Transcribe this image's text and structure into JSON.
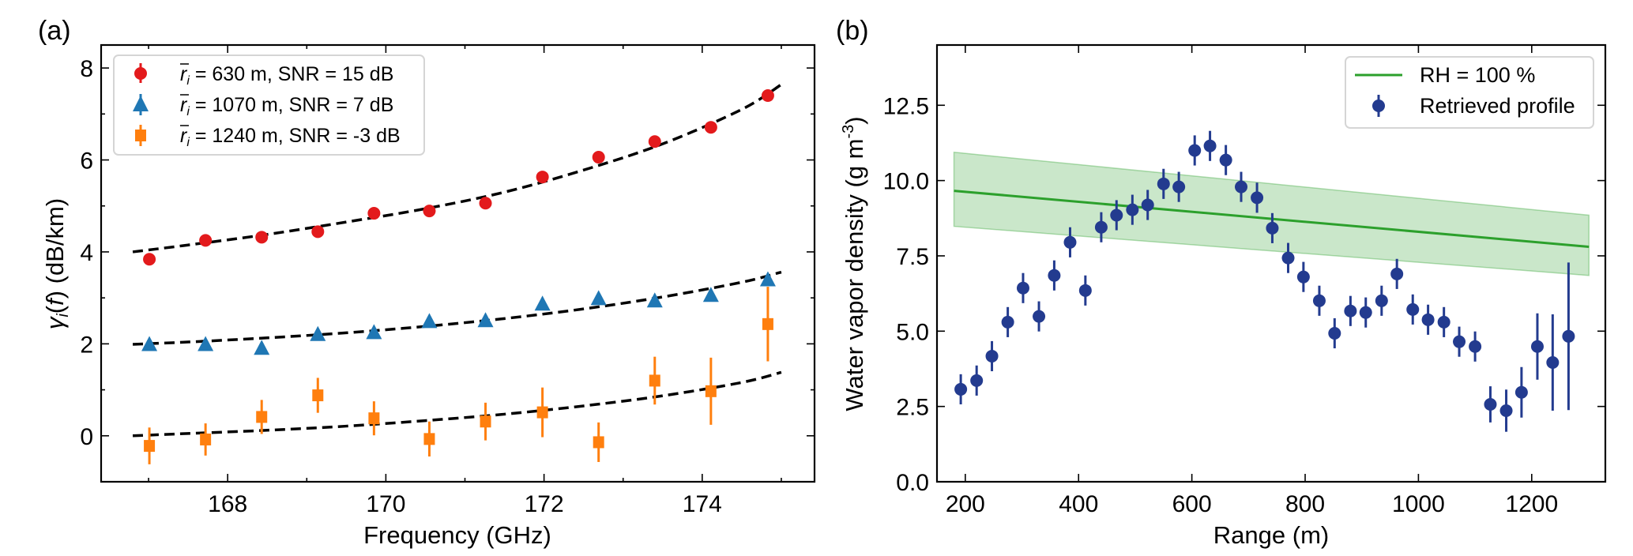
{
  "figure": {
    "panel_a_label": "(a)",
    "panel_b_label": "(b)"
  },
  "chart_data": [
    {
      "id": "a",
      "type": "scatter",
      "title": "",
      "panel_label": "(a)",
      "xlabel": "Frequency (GHz)",
      "ylabel_parts": [
        "γ",
        "i",
        "(",
        "f",
        ") (dB/km)"
      ],
      "ylabel": "γi(f) (dB/km)",
      "xlim": [
        166.4,
        175.42
      ],
      "ylim": [
        -1.0,
        8.5
      ],
      "xticks": [
        168,
        170,
        172,
        174
      ],
      "xtick_labels": [
        "168",
        "170",
        "172",
        "174"
      ],
      "xminor": [
        167,
        169,
        171,
        173,
        175
      ],
      "yticks": [
        0,
        2,
        4,
        6,
        8
      ],
      "ytick_labels": [
        "0",
        "2",
        "4",
        "6",
        "8"
      ],
      "yminor": [
        1,
        3,
        5,
        7
      ],
      "grid": false,
      "legend_position": "top-left",
      "x": [
        167.01,
        167.72,
        168.43,
        169.14,
        169.85,
        170.55,
        171.26,
        171.98,
        172.69,
        173.4,
        174.11,
        174.83
      ],
      "series": [
        {
          "name": "r̄i = 630 m, SNR = 15 dB",
          "legend_parts": [
            "r",
            "i",
            " = 630 m, SNR = 15 dB"
          ],
          "marker": "circle",
          "color": "#e31a1c",
          "values": [
            3.84,
            4.25,
            4.32,
            4.44,
            4.84,
            4.89,
            5.06,
            5.63,
            6.06,
            6.4,
            6.71,
            7.4
          ],
          "errors": [
            0.1,
            0.1,
            0.1,
            0.1,
            0.1,
            0.1,
            0.1,
            0.1,
            0.1,
            0.1,
            0.1,
            0.1
          ],
          "fit": {
            "x": [
              166.8,
              167.5,
              168.5,
              169.5,
              170.5,
              171.5,
              172.5,
              173.5,
              174.5,
              175.0
            ],
            "y": [
              4.0,
              4.15,
              4.38,
              4.65,
              4.94,
              5.3,
              5.78,
              6.35,
              7.1,
              7.64
            ]
          }
        },
        {
          "name": "r̄i = 1070 m, SNR = 7 dB",
          "legend_parts": [
            "r",
            "i",
            " = 1070 m, SNR = 7 dB"
          ],
          "marker": "triangle",
          "color": "#1f77b4",
          "values": [
            1.98,
            1.98,
            1.9,
            2.2,
            2.24,
            2.48,
            2.5,
            2.86,
            2.98,
            2.93,
            3.05,
            3.39
          ],
          "errors": [
            0.08,
            0.08,
            0.08,
            0.08,
            0.08,
            0.08,
            0.08,
            0.08,
            0.08,
            0.08,
            0.08,
            0.08
          ],
          "fit": {
            "x": [
              166.8,
              167.5,
              168.5,
              169.5,
              170.5,
              171.5,
              172.5,
              173.5,
              174.5,
              175.0
            ],
            "y": [
              1.99,
              2.04,
              2.13,
              2.24,
              2.38,
              2.55,
              2.76,
              3.02,
              3.34,
              3.56
            ]
          }
        },
        {
          "name": "r̄i = 1240 m, SNR = -3 dB",
          "legend_parts": [
            "r",
            "i",
            " = 1240 m, SNR = -3 dB"
          ],
          "marker": "square",
          "color": "#ff7f0e",
          "values": [
            -0.22,
            -0.08,
            0.41,
            0.88,
            0.38,
            -0.07,
            0.31,
            0.51,
            -0.14,
            1.2,
            0.97,
            2.43
          ],
          "errors": [
            0.4,
            0.35,
            0.37,
            0.38,
            0.37,
            0.38,
            0.41,
            0.54,
            0.43,
            0.52,
            0.73,
            0.81
          ],
          "fit": {
            "x": [
              166.8,
              167.5,
              168.5,
              169.5,
              170.5,
              171.5,
              172.5,
              173.5,
              174.5,
              175.0
            ],
            "y": [
              0.0,
              0.05,
              0.12,
              0.21,
              0.33,
              0.47,
              0.65,
              0.87,
              1.16,
              1.38
            ]
          }
        }
      ]
    },
    {
      "id": "b",
      "type": "scatter",
      "title": "",
      "panel_label": "(b)",
      "xlabel": "Range (m)",
      "ylabel_main": "Water vapor density (g m",
      "ylabel_sup": "-3",
      "ylabel_end": ")",
      "ylabel": "Water vapor density (g m^-3)",
      "xlim": [
        150,
        1330
      ],
      "ylim": [
        0,
        14.5
      ],
      "xticks": [
        200,
        400,
        600,
        800,
        1000,
        1200
      ],
      "xtick_labels": [
        "200",
        "400",
        "600",
        "800",
        "1000",
        "1200"
      ],
      "yticks": [
        0.0,
        2.5,
        5.0,
        7.5,
        10.0,
        12.5
      ],
      "ytick_labels": [
        "0.0",
        "2.5",
        "5.0",
        "7.5",
        "10.0",
        "12.5"
      ],
      "grid": false,
      "legend_position": "top-right",
      "rh_line": {
        "name": "RH = 100  %",
        "color": "#2ca02c",
        "band_color": "#2ca02c",
        "x": [
          180,
          1301
        ],
        "y": [
          9.66,
          7.8
        ],
        "band_upper": [
          10.94,
          8.85
        ],
        "band_lower": [
          8.48,
          6.85
        ]
      },
      "profile": {
        "name": "Retrieved profile",
        "color": "#233b8f",
        "x": [
          192,
          220,
          247,
          275,
          302,
          330,
          357,
          385,
          412,
          440,
          467,
          495,
          522,
          550,
          577,
          605,
          632,
          660,
          687,
          715,
          742,
          770,
          797,
          825,
          852,
          880,
          907,
          935,
          962,
          990,
          1017,
          1045,
          1072,
          1100,
          1127,
          1155,
          1182,
          1210,
          1237,
          1265
        ],
        "values": [
          3.07,
          3.36,
          4.17,
          5.3,
          6.43,
          5.49,
          6.85,
          7.95,
          6.35,
          8.45,
          8.85,
          9.03,
          9.19,
          9.89,
          9.79,
          11.0,
          11.15,
          10.68,
          9.79,
          9.43,
          8.42,
          7.43,
          6.8,
          6.01,
          4.93,
          5.67,
          5.62,
          6.01,
          6.9,
          5.72,
          5.38,
          5.3,
          4.65,
          4.49,
          2.57,
          2.36,
          2.97,
          4.49,
          3.96,
          4.83
        ],
        "errors": [
          0.5,
          0.5,
          0.5,
          0.5,
          0.5,
          0.5,
          0.5,
          0.5,
          0.5,
          0.5,
          0.5,
          0.5,
          0.5,
          0.5,
          0.5,
          0.5,
          0.5,
          0.5,
          0.5,
          0.5,
          0.5,
          0.5,
          0.5,
          0.5,
          0.5,
          0.5,
          0.5,
          0.5,
          0.5,
          0.5,
          0.5,
          0.5,
          0.5,
          0.5,
          0.6,
          0.7,
          0.84,
          1.1,
          1.6,
          2.45
        ]
      }
    }
  ]
}
